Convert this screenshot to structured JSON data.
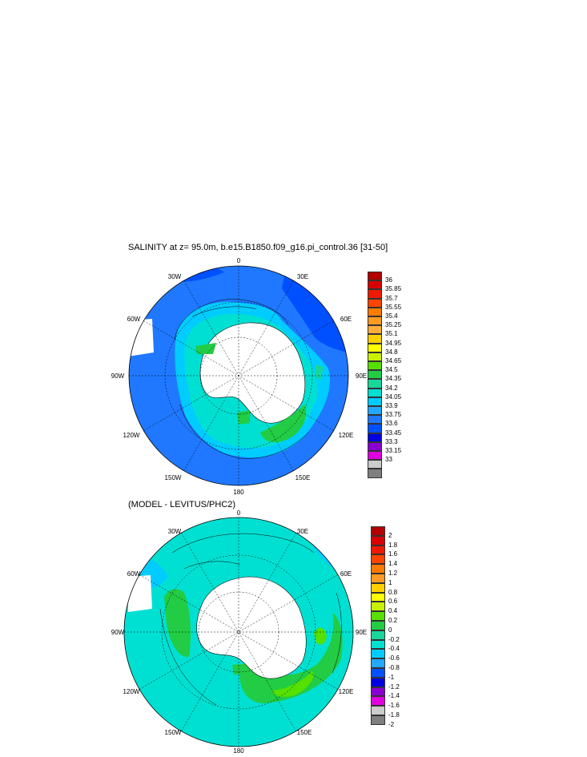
{
  "maps": [
    {
      "id": "salinity",
      "title": "SALINITY at z=  95.0m, b.e15.B1850.f09_g16.pi_control.36 [31-50]",
      "lon_labels": {
        "top": "0",
        "top_right": "30E",
        "right_up": "60E",
        "right": "90E",
        "right_down": "120E",
        "bottom_right": "150E",
        "bottom": "180",
        "bottom_left": "150W",
        "left_down": "120W",
        "left": "90W",
        "left_up": "60W",
        "top_left": "30W"
      },
      "colorbar": {
        "colors": [
          "#b30000",
          "#d80000",
          "#ee1a00",
          "#ff4400",
          "#ff7a00",
          "#ff9a22",
          "#ffad3a",
          "#ffd000",
          "#ffff00",
          "#c8f000",
          "#55e000",
          "#22cc44",
          "#19d69a",
          "#00e0d2",
          "#00ccff",
          "#22a8ff",
          "#1f78ff",
          "#0050ff",
          "#0000e0",
          "#8a00d0",
          "#e000e0",
          "#cccccc",
          "#7f7f7f"
        ],
        "labels": [
          "36",
          "35.85",
          "35.7",
          "35.55",
          "35.4",
          "35.25",
          "35.1",
          "34.95",
          "34.8",
          "34.65",
          "34.5",
          "34.35",
          "34.2",
          "34.05",
          "33.9",
          "33.75",
          "33.6",
          "33.45",
          "33.3",
          "33.15",
          "33"
        ]
      }
    },
    {
      "id": "difference",
      "title": "(MODEL - LEVITUS/PHC2)",
      "lon_labels": {
        "top": "0",
        "top_right": "30E",
        "right_up": "60E",
        "right": "90E",
        "right_down": "120E",
        "bottom_right": "150E",
        "bottom": "180",
        "bottom_left": "150W",
        "left_down": "120W",
        "left": "90W",
        "left_up": "60W",
        "top_left": "30W"
      },
      "colorbar": {
        "colors": [
          "#b30000",
          "#d80000",
          "#ee1a00",
          "#ff4400",
          "#ff7a00",
          "#ff9a22",
          "#ffd000",
          "#ffff00",
          "#c8f000",
          "#55e000",
          "#22cc44",
          "#19d69a",
          "#00e0d2",
          "#00ccff",
          "#22a8ff",
          "#0050ff",
          "#0000e0",
          "#8a00d0",
          "#e000e0",
          "#cccccc",
          "#7f7f7f"
        ],
        "labels": [
          "2",
          "1.8",
          "1.6",
          "1.4",
          "1.2",
          "1",
          "0.8",
          "0.6",
          "0.4",
          "0.2",
          "0",
          "-0.2",
          "-0.4",
          "-0.6",
          "-0.8",
          "-1",
          "-1.2",
          "-1.4",
          "-1.6",
          "-1.8",
          "-2"
        ]
      }
    }
  ]
}
